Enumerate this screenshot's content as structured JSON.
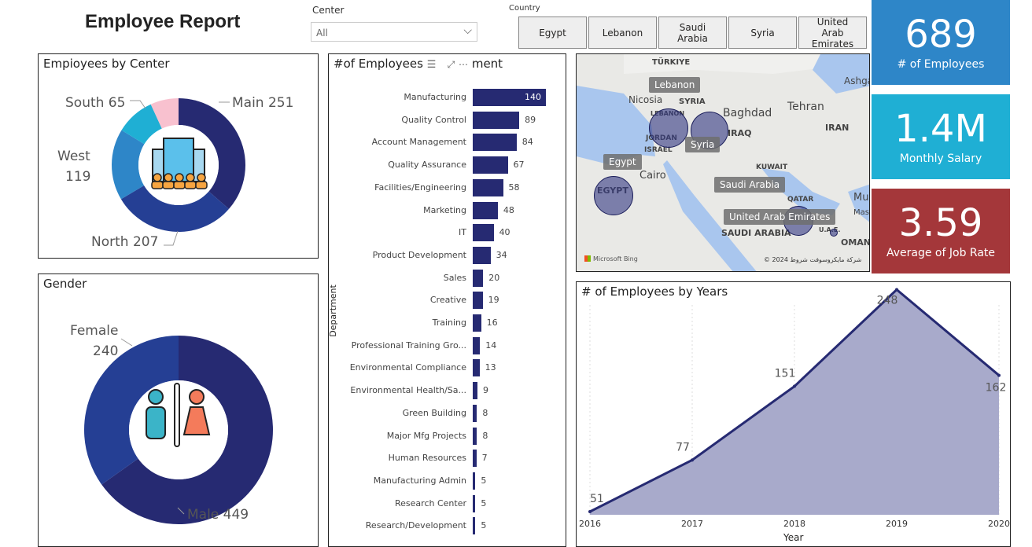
{
  "header": {
    "title": "Employee Report"
  },
  "filters": {
    "center_label": "Center",
    "center_value": "All",
    "country_label": "Country",
    "countries": [
      "Egypt",
      "Lebanon",
      "Saudi Arabia",
      "Syria",
      "United Arab Emirates"
    ]
  },
  "kpis": [
    {
      "value": "689",
      "label": "# of Employees",
      "color": "#2E86C8"
    },
    {
      "value": "1.4M",
      "label": "Monthly Salary",
      "color": "#1FAFD4"
    },
    {
      "value": "3.59",
      "label": "Average of Job Rate",
      "color": "#A4373A"
    }
  ],
  "center_chart": {
    "title": "Empioyees by Center",
    "slices": [
      {
        "label": "Main 251",
        "value": 251,
        "color": "#262A72"
      },
      {
        "label": "North 207",
        "value": 207,
        "color": "#253F94"
      },
      {
        "label": "West",
        "label2": "119",
        "value": 119,
        "color": "#2E86C8"
      },
      {
        "label": "South 65",
        "value": 65,
        "color": "#1FAFD4"
      },
      {
        "label": "",
        "value": 47,
        "color": "#F8C1CF"
      }
    ]
  },
  "gender_chart": {
    "title": "Gender",
    "slices": [
      {
        "label": "Male 449",
        "value": 449,
        "color": "#262A72"
      },
      {
        "label": "Female",
        "label2": "240",
        "value": 240,
        "color": "#253F94"
      }
    ]
  },
  "dept_chart": {
    "title": "#of Employees",
    "title_tail": "ment",
    "axis_label": "Department",
    "color": "#262A72",
    "categories": [
      "Manufacturing",
      "Quality Control",
      "Account Management",
      "Quality Assurance",
      "Facilities/Engineering",
      "Marketing",
      "IT",
      "Product Development",
      "Sales",
      "Creative",
      "Training",
      "Professional Training Gro...",
      "Environmental Compliance",
      "Environmental Health/Sa...",
      "Green Building",
      "Major Mfg Projects",
      "Human Resources",
      "Manufacturing Admin",
      "Research Center",
      "Research/Development"
    ],
    "values": [
      140,
      89,
      84,
      67,
      58,
      48,
      40,
      34,
      20,
      19,
      16,
      14,
      13,
      9,
      8,
      8,
      7,
      5,
      5,
      5
    ]
  },
  "map": {
    "labels": [
      "Lebanon",
      "Syria",
      "Egypt",
      "Saudi Arabia",
      "United Arab Emirates"
    ],
    "places": [
      "TÜRKIYE",
      "Nicosia",
      "SYRIA",
      "LEBANON",
      "Baghdad",
      "Tehran",
      "IRAN",
      "IRAQ",
      "JORDAN",
      "ISRAEL",
      "Cairo",
      "EGYPT",
      "KUWAIT",
      "QATAR",
      "SAUDI ARABIA",
      "OMAN",
      "Ashga",
      "Mus",
      "Mas",
      "U.A.E."
    ],
    "attribution": "Microsoft Bing",
    "copyright": "© 2024 شركة مايكروسوفت  شروط"
  },
  "chart_data": {
    "type": "area",
    "title": "# of Employees by Years",
    "xlabel": "Year",
    "ylabel": "",
    "x": [
      "2016",
      "2017",
      "2018",
      "2019",
      "2020"
    ],
    "values": [
      51,
      77,
      151,
      248,
      162
    ],
    "color": "#262A72",
    "fill": "#A8AACB"
  }
}
